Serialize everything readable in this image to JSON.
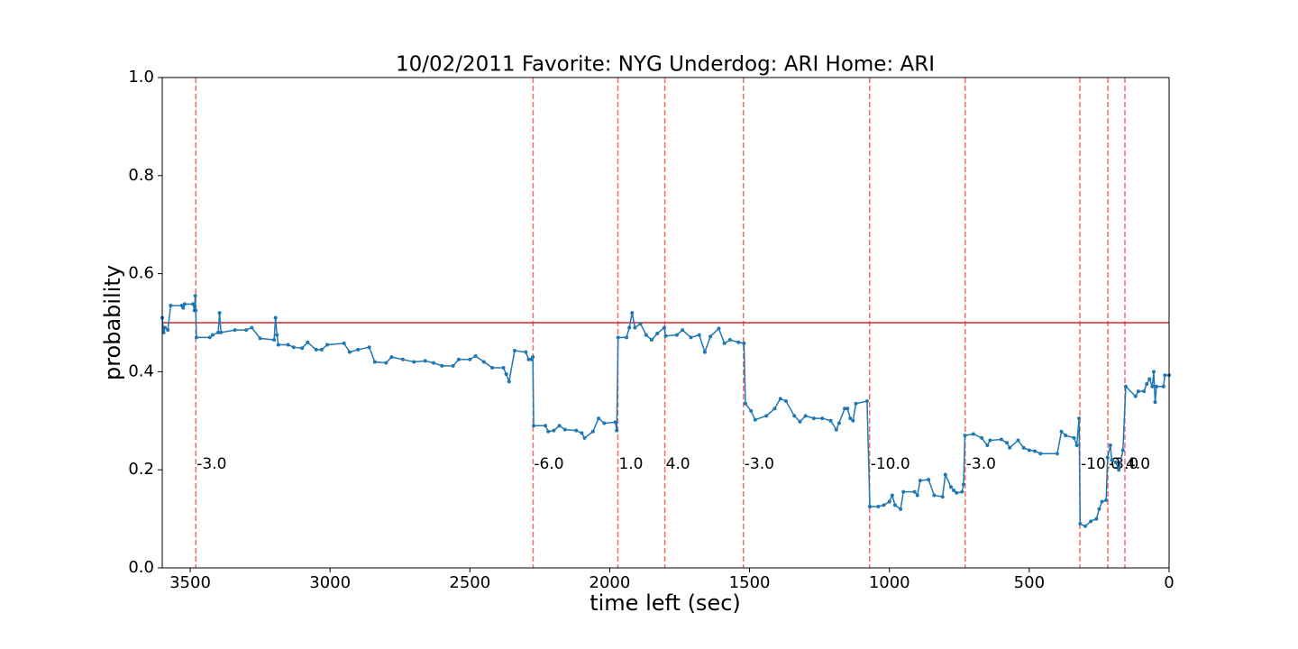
{
  "chart_data": {
    "type": "line",
    "title": "10/02/2011 Favorite: NYG Underdog: ARI Home: ARI",
    "x_label": "time left (sec)",
    "y_label": "probability",
    "xlim": [
      3600,
      0
    ],
    "xticks": [
      3500,
      3000,
      2500,
      2000,
      1500,
      1000,
      500,
      0
    ],
    "ylim": [
      0,
      1
    ],
    "yticks": [
      {
        "value": 0,
        "label": "0.0"
      },
      0.2,
      0.4,
      0.6,
      0.8,
      {
        "value": 1,
        "label": "1.0"
      }
    ],
    "color": "#1f77b4",
    "x": [
      3600,
      3595,
      3590,
      3580,
      3570,
      3530,
      3525,
      3520,
      3490,
      3485,
      3482,
      3480,
      3478,
      3430,
      3420,
      3400,
      3395,
      3390,
      3340,
      3300,
      3280,
      3250,
      3200,
      3195,
      3190,
      3185,
      3150,
      3130,
      3100,
      3080,
      3050,
      3030,
      3010,
      2950,
      2930,
      2900,
      2860,
      2840,
      2800,
      2780,
      2740,
      2700,
      2660,
      2630,
      2600,
      2560,
      2540,
      2500,
      2480,
      2450,
      2420,
      2380,
      2370,
      2360,
      2340,
      2300,
      2290,
      2280,
      2275,
      2272,
      2230,
      2220,
      2200,
      2180,
      2160,
      2120,
      2100,
      2090,
      2060,
      2040,
      2020,
      1980,
      1975,
      1970,
      1940,
      1930,
      1920,
      1910,
      1890,
      1870,
      1850,
      1830,
      1805,
      1800,
      1760,
      1740,
      1710,
      1680,
      1660,
      1640,
      1610,
      1590,
      1570,
      1540,
      1520,
      1515,
      1495,
      1480,
      1440,
      1410,
      1390,
      1370,
      1340,
      1320,
      1300,
      1270,
      1240,
      1210,
      1190,
      1180,
      1160,
      1150,
      1140,
      1130,
      1120,
      1080,
      1070,
      1040,
      1020,
      1000,
      990,
      980,
      960,
      950,
      910,
      900,
      890,
      860,
      840,
      810,
      800,
      780,
      770,
      760,
      740,
      735,
      730,
      700,
      670,
      650,
      640,
      600,
      580,
      570,
      540,
      520,
      500,
      480,
      460,
      400,
      385,
      370,
      340,
      330,
      322,
      318,
      300,
      280,
      260,
      250,
      240,
      225,
      220,
      210,
      205,
      190,
      180,
      165,
      155,
      120,
      110,
      90,
      80,
      70,
      60,
      55,
      50,
      45,
      20,
      15,
      0
    ],
    "values": [
      0.51,
      0.48,
      0.49,
      0.485,
      0.535,
      0.535,
      0.53,
      0.538,
      0.538,
      0.525,
      0.555,
      0.525,
      0.47,
      0.47,
      0.475,
      0.48,
      0.52,
      0.48,
      0.485,
      0.485,
      0.49,
      0.468,
      0.465,
      0.51,
      0.475,
      0.455,
      0.455,
      0.45,
      0.448,
      0.46,
      0.445,
      0.445,
      0.455,
      0.458,
      0.44,
      0.445,
      0.45,
      0.42,
      0.418,
      0.43,
      0.425,
      0.42,
      0.422,
      0.418,
      0.412,
      0.412,
      0.425,
      0.425,
      0.432,
      0.42,
      0.408,
      0.408,
      0.395,
      0.38,
      0.443,
      0.44,
      0.425,
      0.425,
      0.43,
      0.29,
      0.29,
      0.278,
      0.28,
      0.29,
      0.282,
      0.28,
      0.275,
      0.265,
      0.278,
      0.305,
      0.295,
      0.297,
      0.28,
      0.47,
      0.47,
      0.49,
      0.52,
      0.49,
      0.498,
      0.475,
      0.465,
      0.478,
      0.49,
      0.473,
      0.475,
      0.485,
      0.47,
      0.475,
      0.44,
      0.472,
      0.488,
      0.458,
      0.465,
      0.46,
      0.458,
      0.335,
      0.32,
      0.302,
      0.31,
      0.325,
      0.345,
      0.34,
      0.31,
      0.298,
      0.31,
      0.305,
      0.305,
      0.3,
      0.282,
      0.295,
      0.325,
      0.325,
      0.305,
      0.3,
      0.335,
      0.34,
      0.125,
      0.125,
      0.128,
      0.135,
      0.148,
      0.128,
      0.12,
      0.155,
      0.155,
      0.148,
      0.178,
      0.18,
      0.148,
      0.145,
      0.19,
      0.165,
      0.158,
      0.153,
      0.155,
      0.17,
      0.27,
      0.273,
      0.265,
      0.25,
      0.26,
      0.262,
      0.255,
      0.245,
      0.26,
      0.245,
      0.24,
      0.238,
      0.233,
      0.233,
      0.278,
      0.27,
      0.265,
      0.25,
      0.305,
      0.09,
      0.085,
      0.095,
      0.1,
      0.12,
      0.135,
      0.138,
      0.225,
      0.25,
      0.22,
      0.215,
      0.2,
      0.24,
      0.37,
      0.35,
      0.36,
      0.36,
      0.375,
      0.385,
      0.37,
      0.4,
      0.338,
      0.37,
      0.37,
      0.393,
      0.393
    ],
    "vline_color": "#f36b6b",
    "vlines": [
      {
        "x": 3480,
        "label": "-3.0"
      },
      {
        "x": 2274,
        "label": "-6.0"
      },
      {
        "x": 1971,
        "label": "1.0"
      },
      {
        "x": 1803,
        "label": "4.0"
      },
      {
        "x": 1522,
        "label": "-3.0"
      },
      {
        "x": 1071,
        "label": "-10.0"
      },
      {
        "x": 729,
        "label": "-3.0"
      },
      {
        "x": 319,
        "label": "-10.0"
      },
      {
        "x": 219,
        "label": "-3.0"
      },
      {
        "x": 158,
        "label": "4.0"
      }
    ],
    "hline": {
      "y": 0.5,
      "color": "#d62728"
    }
  }
}
